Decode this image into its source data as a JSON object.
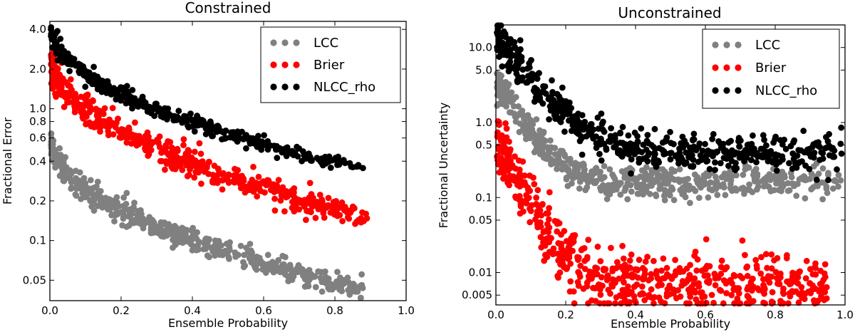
{
  "chart_data": [
    {
      "type": "scatter",
      "title": "Constrained",
      "xlabel": "Ensemble Probability",
      "ylabel": "Fractional Error",
      "xscale": "linear",
      "yscale": "log",
      "xlim": [
        0.0,
        1.0
      ],
      "ylim": [
        0.035,
        4.6
      ],
      "xticks": [
        0.0,
        0.2,
        0.4,
        0.6,
        0.8,
        1.0
      ],
      "xtick_labels": [
        "0.0",
        "0.2",
        "0.4",
        "0.6",
        "0.8",
        "1.0"
      ],
      "yticks": [
        0.05,
        0.1,
        0.2,
        0.4,
        0.6,
        0.8,
        1.0,
        2.0,
        4.0
      ],
      "ytick_labels": [
        "0.05",
        "0.1",
        "0.2",
        "0.4",
        "0.6",
        "0.8",
        "1.0",
        "2.0",
        "4.0"
      ],
      "legend_position": "top-right",
      "series": [
        {
          "name": "LCC",
          "color": "#808080",
          "n_points": 520,
          "x_range": [
            0.003,
            0.88
          ],
          "y_at_x0": 0.6,
          "y_at_xmax": 0.042,
          "decay_exponent": 0.5,
          "log_spread": 0.04
        },
        {
          "name": "Brier",
          "color": "#ff0000",
          "n_points": 520,
          "x_range": [
            0.003,
            0.89
          ],
          "y_at_x0": 2.6,
          "y_at_xmax": 0.15,
          "decay_exponent": 0.5,
          "log_spread": 0.05
        },
        {
          "name": "NLCC_rho",
          "color": "#000000",
          "n_points": 420,
          "x_range": [
            0.003,
            0.88
          ],
          "y_at_x0": 4.2,
          "y_at_xmax": 0.35,
          "decay_exponent": 0.5,
          "log_spread": 0.03
        }
      ]
    },
    {
      "type": "scatter",
      "title": "Unconstrained",
      "xlabel": "Ensemble Probability",
      "ylabel": "Fractional Uncertainty",
      "xscale": "linear",
      "yscale": "log",
      "xlim": [
        0.0,
        1.0
      ],
      "ylim": [
        0.0037,
        20.0
      ],
      "xticks": [
        0.0,
        0.2,
        0.4,
        0.6,
        0.8,
        1.0
      ],
      "xtick_labels": [
        "0.0",
        "0.2",
        "0.4",
        "0.6",
        "0.8",
        "1.0"
      ],
      "yticks": [
        0.005,
        0.01,
        0.05,
        0.1,
        0.5,
        1.0,
        5.0,
        10.0
      ],
      "ytick_labels": [
        "0.005",
        "0.01",
        "0.05",
        "0.1",
        "0.5",
        "1.0",
        "5.0",
        "10.0"
      ],
      "legend_position": "top-right",
      "series": [
        {
          "name": "LCC",
          "color": "#808080",
          "n_points": 560,
          "x_range": [
            0.003,
            0.99
          ],
          "y_at_x0": 3.5,
          "y_floor": 0.15,
          "y_tail_max": 0.17,
          "decay_scale": 0.06,
          "log_spread": 0.1
        },
        {
          "name": "Brier",
          "color": "#ff0000",
          "n_points": 600,
          "x_range": [
            0.003,
            0.95
          ],
          "y_at_x0": 0.6,
          "y_floor": 0.007,
          "decay_scale": 0.05,
          "log_spread": 0.2
        },
        {
          "name": "NLCC_rho",
          "color": "#000000",
          "n_points": 560,
          "x_range": [
            0.003,
            0.99
          ],
          "y_at_x0": 15.0,
          "y_floor": 0.4,
          "decay_scale": 0.07,
          "log_spread": 0.12
        }
      ]
    }
  ]
}
